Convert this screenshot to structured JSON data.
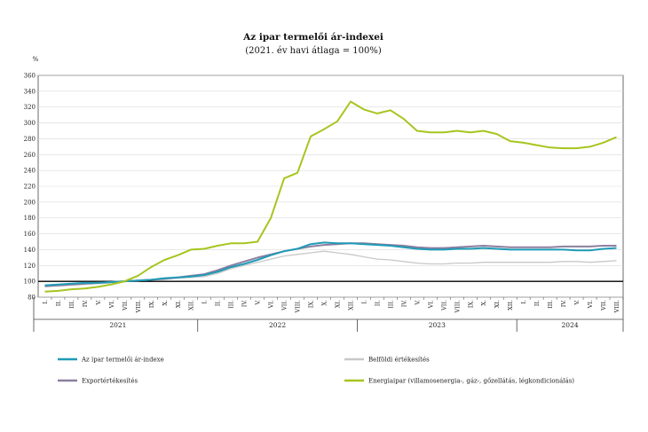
{
  "chart_data": {
    "type": "line",
    "title": "Az ipar termelői ár-indexei",
    "subtitle": "(2021. év havi átlaga = 100%)",
    "ylabel": "%",
    "ylim": [
      80,
      360
    ],
    "yticks": [
      80,
      100,
      120,
      140,
      160,
      180,
      200,
      220,
      240,
      260,
      280,
      300,
      320,
      340,
      360
    ],
    "baseline": 100,
    "grid": true,
    "legend_position": "bottom",
    "months": [
      "I.",
      "II.",
      "III.",
      "IV.",
      "V.",
      "VI.",
      "VII.",
      "VIII.",
      "IX.",
      "X.",
      "XI.",
      "XII.",
      "I.",
      "II.",
      "III.",
      "IV.",
      "V.",
      "VI.",
      "VII.",
      "VIII.",
      "IX.",
      "X.",
      "XI.",
      "XII.",
      "I.",
      "II.",
      "III.",
      "IV.",
      "V.",
      "VI.",
      "VII.",
      "VIII.",
      "IX.",
      "X.",
      "XI.",
      "XII.",
      "I.",
      "II.",
      "III.",
      "IV.",
      "V.",
      "VI.",
      "VII.",
      "VIII."
    ],
    "years": [
      {
        "label": "2021",
        "months": 12
      },
      {
        "label": "2022",
        "months": 12
      },
      {
        "label": "2023",
        "months": 12
      },
      {
        "label": "2024",
        "months": 8
      }
    ],
    "series": [
      {
        "name": "Az ipar termelői ár-indexe",
        "color": "#1f9bb6",
        "values": [
          95,
          96,
          97,
          98,
          98,
          99,
          100,
          101,
          102,
          104,
          105,
          106,
          108,
          112,
          118,
          122,
          127,
          133,
          138,
          141,
          147,
          149,
          148,
          148,
          147,
          146,
          145,
          143,
          141,
          140,
          140,
          141,
          141,
          142,
          141,
          140,
          140,
          140,
          140,
          140,
          139,
          139,
          141,
          142
        ]
      },
      {
        "name": "Belföldi értékesítés",
        "color": "#c8c8c8",
        "values": [
          93,
          94,
          95,
          96,
          97,
          98,
          100,
          101,
          102,
          103,
          104,
          105,
          106,
          110,
          116,
          120,
          124,
          128,
          132,
          134,
          136,
          138,
          136,
          134,
          131,
          128,
          127,
          125,
          123,
          122,
          122,
          123,
          123,
          124,
          124,
          124,
          124,
          124,
          124,
          125,
          125,
          124,
          125,
          126
        ]
      },
      {
        "name": "Exportértékesítés",
        "color": "#8c7fa0",
        "values": [
          94,
          95,
          96,
          97,
          98,
          99,
          100,
          101,
          102,
          103,
          105,
          107,
          109,
          114,
          120,
          125,
          130,
          134,
          138,
          141,
          144,
          146,
          147,
          148,
          148,
          147,
          146,
          145,
          143,
          142,
          142,
          143,
          144,
          145,
          144,
          143,
          143,
          143,
          143,
          144,
          144,
          144,
          145,
          145
        ]
      },
      {
        "name": "Energiaipar (villamosenergia-, gáz-, gőzellátás, légkondicionálás)",
        "color": "#a6c51f",
        "values": [
          87,
          88,
          90,
          91,
          93,
          96,
          100,
          107,
          118,
          127,
          133,
          140,
          141,
          145,
          148,
          148,
          150,
          180,
          230,
          237,
          283,
          292,
          302,
          327,
          317,
          312,
          316,
          305,
          290,
          288,
          288,
          290,
          288,
          290,
          286,
          277,
          275,
          272,
          269,
          268,
          268,
          270,
          275,
          282
        ]
      }
    ]
  }
}
